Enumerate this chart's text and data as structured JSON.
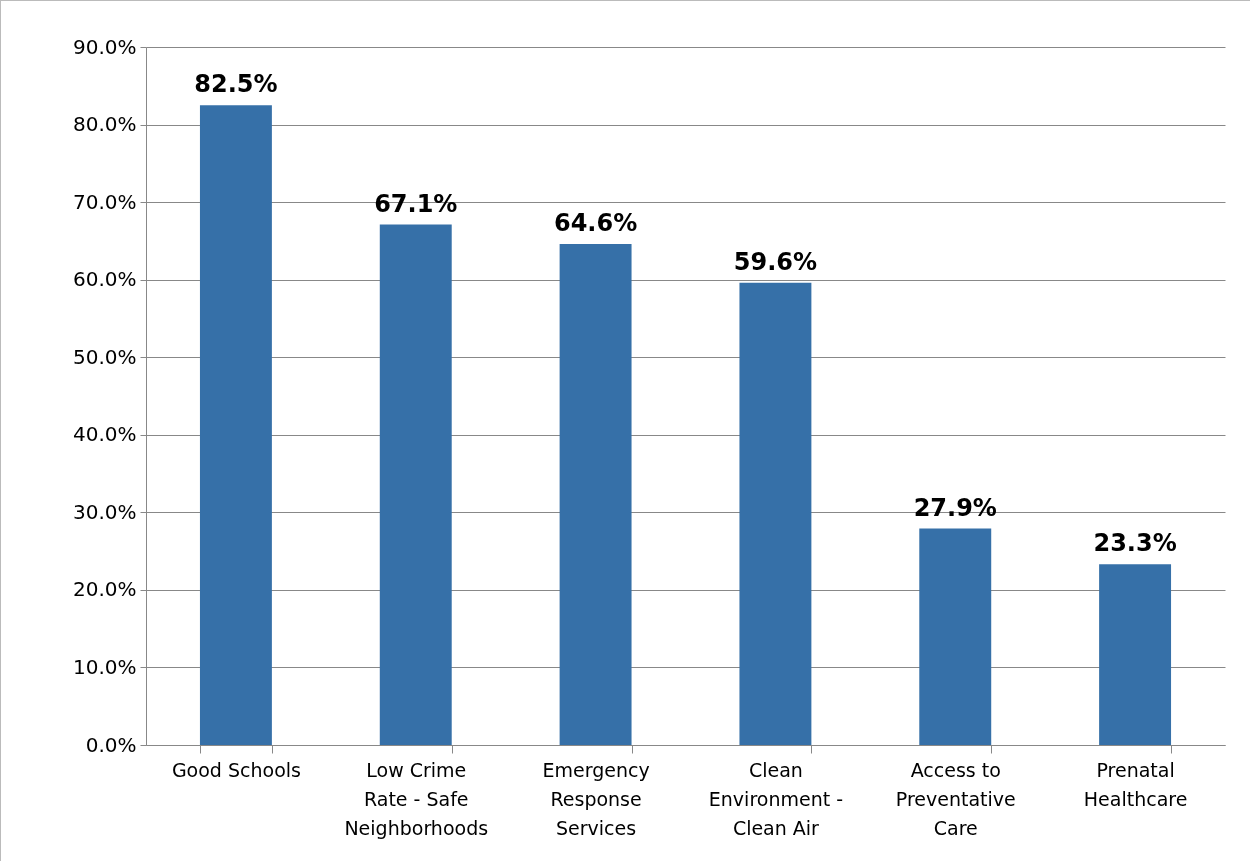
{
  "chart_data": {
    "type": "bar",
    "categories": [
      "Good Schools",
      "Low Crime Rate - Safe Neighborhoods",
      "Emergency Response Services",
      "Clean Environment - Clean Air",
      "Access to Preventative Care",
      "Prenatal Healthcare"
    ],
    "values": [
      82.5,
      67.1,
      64.6,
      59.6,
      27.9,
      23.3
    ],
    "value_labels": [
      "82.5%",
      "67.1%",
      "64.6%",
      "59.6%",
      "27.9%",
      "23.3%"
    ],
    "color": "#3670a8",
    "ylim": [
      0,
      90
    ],
    "yticks": [
      {
        "value": 0,
        "label": "0.0%"
      },
      {
        "value": 10,
        "label": "10.0%"
      },
      {
        "value": 20,
        "label": "20.0%"
      },
      {
        "value": 30,
        "label": "30.0%"
      },
      {
        "value": 40,
        "label": "40.0%"
      },
      {
        "value": 50,
        "label": "50.0%"
      },
      {
        "value": 60,
        "label": "60.0%"
      },
      {
        "value": 70,
        "label": "70.0%"
      },
      {
        "value": 80,
        "label": "80.0%"
      },
      {
        "value": 90,
        "label": "90.0%"
      }
    ],
    "grid": "y"
  }
}
